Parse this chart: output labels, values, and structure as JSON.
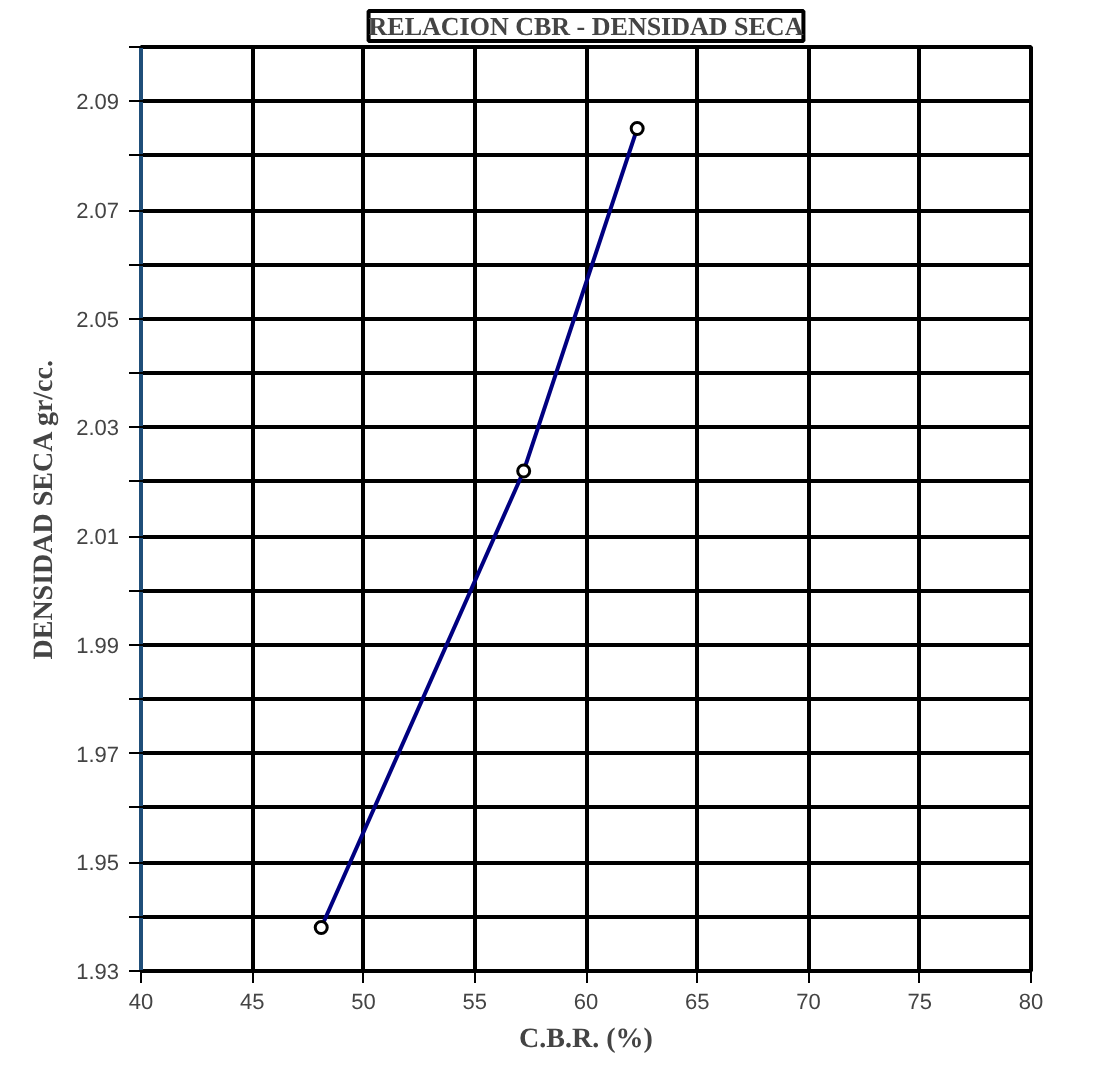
{
  "chart_data": {
    "type": "line",
    "title": "RELACION CBR - DENSIDAD SECA",
    "xlabel": "C.B.R. (%)",
    "ylabel": "DENSIDAD SECA gr/cc.",
    "x": [
      48.1,
      57.2,
      62.3
    ],
    "series": [
      {
        "color": "#000080",
        "values": [
          1.938,
          2.022,
          2.085
        ]
      }
    ],
    "marker": "circle",
    "line_style": "solid",
    "grid": true,
    "xlim": [
      40,
      80
    ],
    "xticks": [
      40,
      45,
      50,
      55,
      60,
      65,
      70,
      75,
      80
    ],
    "ylim": [
      1.93,
      2.1
    ],
    "yticks": [
      1.93,
      {
        "value": 1.94,
        "label": null
      },
      1.95,
      {
        "value": 1.96,
        "label": null
      },
      1.97,
      {
        "value": 1.98,
        "label": null
      },
      1.99,
      {
        "value": 2.0,
        "label": null
      },
      2.01,
      {
        "value": 2.02,
        "label": null
      },
      2.03,
      {
        "value": 2.04,
        "label": null
      },
      2.05,
      {
        "value": 2.06,
        "label": null
      },
      2.07,
      {
        "value": 2.08,
        "label": null
      },
      2.09,
      {
        "value": 2.1,
        "label": null
      }
    ]
  }
}
